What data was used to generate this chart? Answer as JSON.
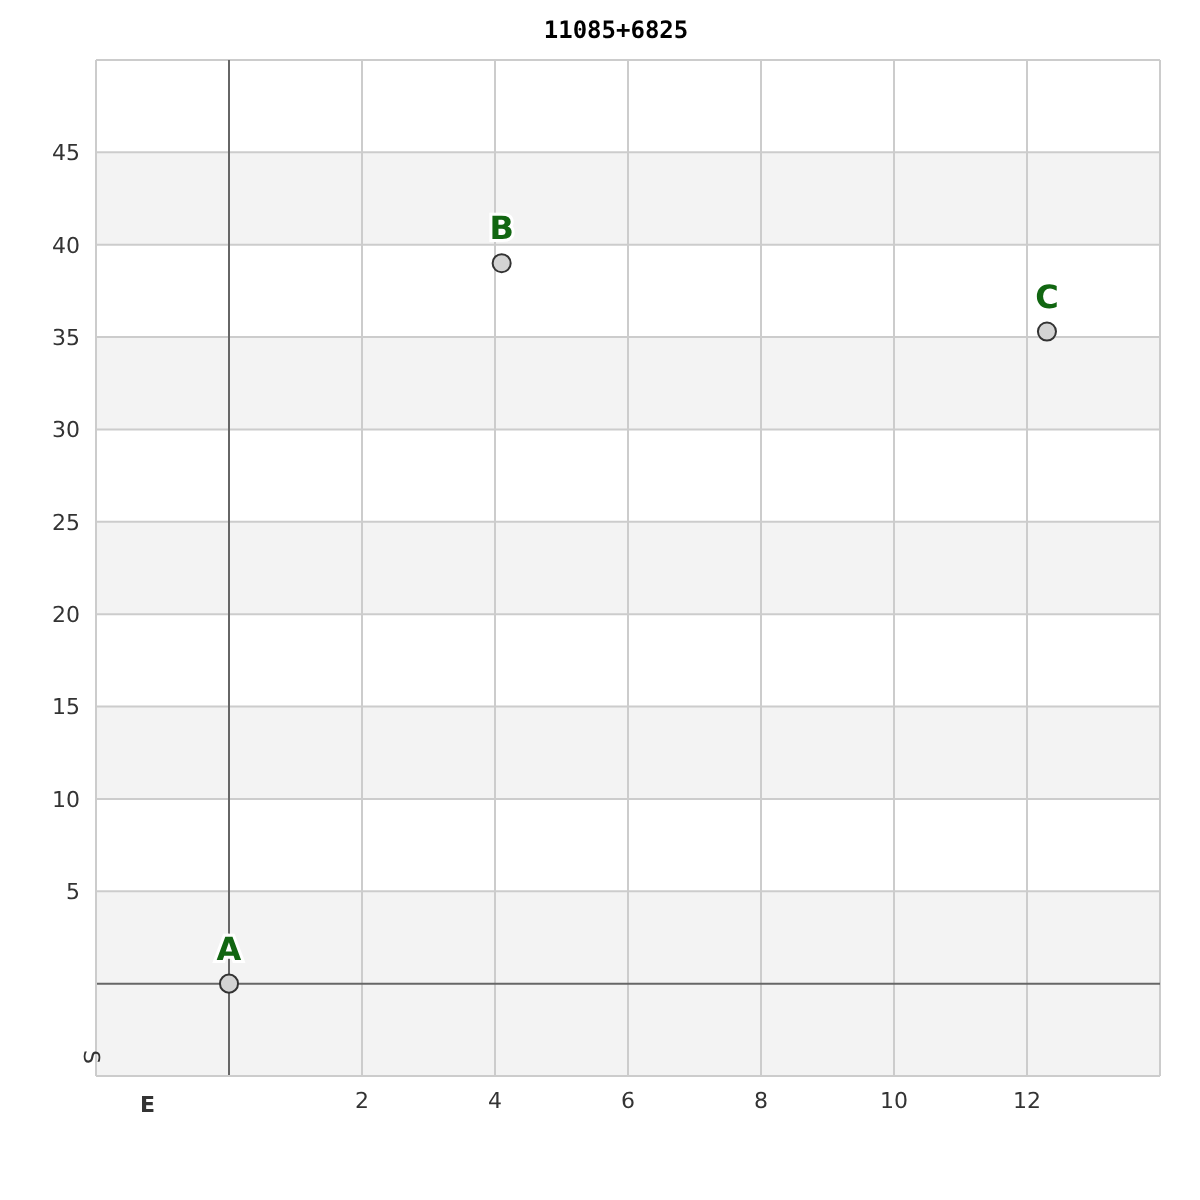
{
  "chart_data": {
    "type": "scatter",
    "title": "11085+6825",
    "xlabel": "E",
    "ylabel": "S",
    "x": [
      0,
      4.1,
      12.3
    ],
    "series": [
      {
        "color": "#d3d3d3",
        "values": [
          0,
          39,
          35.3
        ]
      }
    ],
    "annotations": [
      {
        "text": "A",
        "x": 0,
        "y": 0
      },
      {
        "text": "B",
        "x": 4.1,
        "y": 39
      },
      {
        "text": "C",
        "x": 12.3,
        "y": 35.3
      }
    ],
    "xlim": [
      -2,
      14
    ],
    "xticks": [
      2,
      4,
      6,
      8,
      10,
      12
    ],
    "ylim": [
      -5,
      50
    ],
    "yticks": [
      5,
      10,
      15,
      20,
      25,
      30,
      35,
      40,
      45
    ],
    "grid": true,
    "marker": "circle",
    "legend": false
  }
}
